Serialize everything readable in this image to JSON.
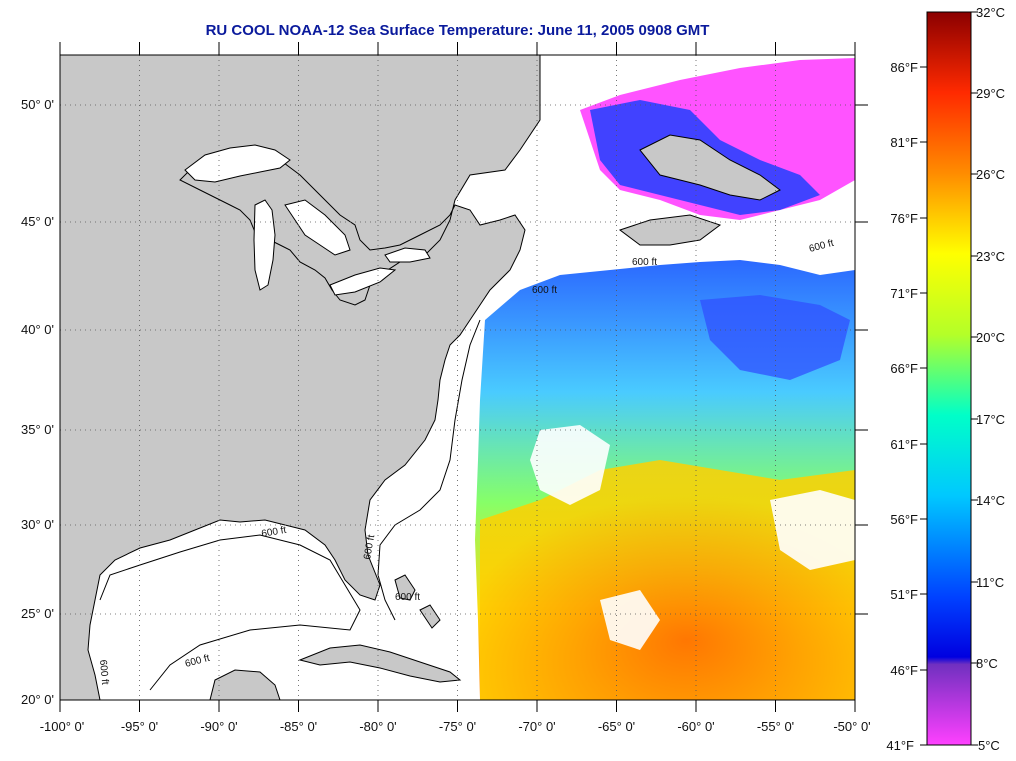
{
  "title": "RU COOL  NOAA-12  Sea Surface Temperature:  June 11, 2005 0908 GMT",
  "map": {
    "lon_range": [
      -100,
      -50
    ],
    "lat_range": [
      20,
      52.5
    ],
    "lon_ticks": [
      "-100° 0'",
      "-95° 0'",
      "-90° 0'",
      "-85° 0'",
      "-80° 0'",
      "-75° 0'",
      "-70° 0'",
      "-65° 0'",
      "-60° 0'",
      "-55° 0'",
      "-50° 0'"
    ],
    "lat_ticks": [
      "20° 0'",
      "25° 0'",
      "30° 0'",
      "35° 0'",
      "40° 0'",
      "45° 0'",
      "50° 0'"
    ],
    "contour_label": "600 ft",
    "colors": {
      "land": "#c8c8c8",
      "ocean_no_data": "#ffffff",
      "coastline": "#000000",
      "grid": "#555555"
    }
  },
  "colorbar": {
    "celsius_labels": [
      "32°C",
      "29°C",
      "26°C",
      "23°C",
      "20°C",
      "17°C",
      "14°C",
      "11°C",
      "8°C",
      "5°C"
    ],
    "fahrenheit_labels": [
      "86°F",
      "81°F",
      "76°F",
      "71°F",
      "66°F",
      "61°F",
      "56°F",
      "51°F",
      "46°F",
      "41°F"
    ],
    "stops": [
      "#8b0000",
      "#ff2a00",
      "#ff8c00",
      "#ffff00",
      "#b4ff28",
      "#00ffc8",
      "#00c8ff",
      "#0040ff",
      "#7030c0",
      "#ff40ff"
    ]
  }
}
